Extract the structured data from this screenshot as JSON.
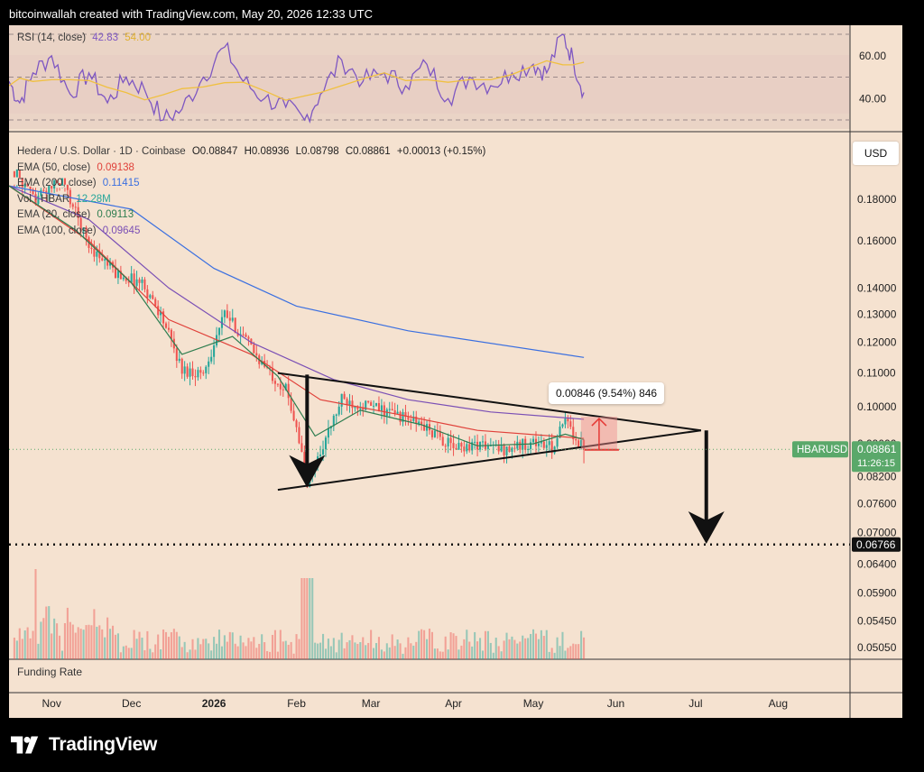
{
  "header": {
    "text": "bitcoinwallah created with TradingView.com, May 20, 2026 12:33 UTC"
  },
  "branding": {
    "logo_text": "TradingView"
  },
  "rsi_panel": {
    "label": "RSI (14, close)",
    "value": "42.83",
    "ma_value": "54.00",
    "tick_labels": [
      "60.00",
      "40.00"
    ]
  },
  "price_panel": {
    "title": "Hedera / U.S. Dollar · 1D · Coinbase",
    "ohlc": {
      "o": "O0.08847",
      "h": "H0.08936",
      "l": "L0.08798",
      "c": "C0.08861",
      "chg": "+0.00013 (+0.15%)"
    },
    "indicators": [
      {
        "label": "EMA (50, close)",
        "value": "0.09138",
        "color": "#e0413a"
      },
      {
        "label": "EMA (200, close)",
        "value": "0.11415",
        "color": "#3a6fe0"
      },
      {
        "label": "Vol · HBAR",
        "value": "12.28M",
        "color": "#26a69a"
      },
      {
        "label": "EMA (20, close)",
        "value": "0.09113",
        "color": "#2e7d4f"
      },
      {
        "label": "EMA (100, close)",
        "value": "0.09645",
        "color": "#7a4fb5"
      }
    ],
    "currency": "USD",
    "symbol_tag": "HBARUSD",
    "last_price": "0.08861",
    "countdown": "11:26:15",
    "target_label": "0.06766",
    "callout": "0.00846 (9.54%) 846"
  },
  "funding_panel": {
    "label": "Funding Rate"
  },
  "colors": {
    "up": "#26a69a",
    "down": "#ef5350",
    "ema20": "#2e7d4f",
    "ema50": "#e0413a",
    "ema100": "#7a4fb5",
    "ema200": "#3a6fe0",
    "rsi": "#7e57c2",
    "rsi_ma": "#f0c040",
    "background": "#f5e2d0",
    "tag": "#5aa86a"
  },
  "chart_data": {
    "type": "candlestick",
    "scale": "log",
    "y_tick_labels": [
      "0.18000",
      "0.16000",
      "0.14000",
      "0.13000",
      "0.12000",
      "0.11000",
      "0.10000",
      "0.09000",
      "0.08200",
      "0.07600",
      "0.07000",
      "0.06400",
      "0.05900",
      "0.05450",
      "0.05050"
    ],
    "x_tick_labels": [
      "Nov",
      "Dec",
      "2026",
      "Feb",
      "Mar",
      "Apr",
      "May",
      "Jun",
      "Jul",
      "Aug"
    ],
    "x_range": [
      "2025-10-16",
      "2026-08-28"
    ],
    "y_range": [
      0.0495,
      0.188
    ],
    "price_key_points": [
      [
        "2025-10-18",
        0.195
      ],
      [
        "2025-10-25",
        0.18
      ],
      [
        "2025-11-05",
        0.19
      ],
      [
        "2025-11-15",
        0.158
      ],
      [
        "2025-11-25",
        0.146
      ],
      [
        "2025-12-05",
        0.142
      ],
      [
        "2025-12-12",
        0.13
      ],
      [
        "2025-12-20",
        0.111
      ],
      [
        "2025-12-28",
        0.11
      ],
      [
        "2026-01-05",
        0.13
      ],
      [
        "2026-01-12",
        0.122
      ],
      [
        "2026-01-20",
        0.112
      ],
      [
        "2026-01-28",
        0.105
      ],
      [
        "2026-02-01",
        0.095
      ],
      [
        "2026-02-05",
        0.08
      ],
      [
        "2026-02-10",
        0.088
      ],
      [
        "2026-02-18",
        0.102
      ],
      [
        "2026-03-01",
        0.1
      ],
      [
        "2026-03-10",
        0.098
      ],
      [
        "2026-03-20",
        0.095
      ],
      [
        "2026-04-01",
        0.089
      ],
      [
        "2026-04-10",
        0.09
      ],
      [
        "2026-04-20",
        0.0885
      ],
      [
        "2026-05-01",
        0.0905
      ],
      [
        "2026-05-08",
        0.089
      ],
      [
        "2026-05-13",
        0.096
      ],
      [
        "2026-05-20",
        0.0886
      ]
    ],
    "ema_series": [
      {
        "name": "EMA (200, close)",
        "points": [
          [
            "2025-10-16",
            0.202
          ],
          [
            "2025-12-01",
            0.175
          ],
          [
            "2026-01-01",
            0.148
          ],
          [
            "2026-02-01",
            0.133
          ],
          [
            "2026-03-15",
            0.124
          ],
          [
            "2026-05-20",
            0.115
          ]
        ]
      },
      {
        "name": "EMA (100, close)",
        "points": [
          [
            "2025-10-16",
            0.2
          ],
          [
            "2025-11-15",
            0.17
          ],
          [
            "2025-12-15",
            0.14
          ],
          [
            "2026-01-15",
            0.12
          ],
          [
            "2026-02-15",
            0.108
          ],
          [
            "2026-03-15",
            0.102
          ],
          [
            "2026-04-15",
            0.0985
          ],
          [
            "2026-05-20",
            0.0965
          ]
        ]
      },
      {
        "name": "EMA (50, close)",
        "points": [
          [
            "2025-10-16",
            0.195
          ],
          [
            "2025-11-15",
            0.16
          ],
          [
            "2025-12-15",
            0.128
          ],
          [
            "2026-01-15",
            0.116
          ],
          [
            "2026-02-10",
            0.102
          ],
          [
            "2026-03-10",
            0.098
          ],
          [
            "2026-04-10",
            0.0935
          ],
          [
            "2026-05-20",
            0.0914
          ]
        ]
      },
      {
        "name": "EMA (20, close)",
        "points": [
          [
            "2025-10-16",
            0.19
          ],
          [
            "2025-11-10",
            0.165
          ],
          [
            "2025-12-01",
            0.142
          ],
          [
            "2025-12-20",
            0.116
          ],
          [
            "2026-01-08",
            0.122
          ],
          [
            "2026-01-25",
            0.109
          ],
          [
            "2026-02-08",
            0.092
          ],
          [
            "2026-02-25",
            0.099
          ],
          [
            "2026-03-20",
            0.095
          ],
          [
            "2026-04-10",
            0.0895
          ],
          [
            "2026-05-01",
            0.09
          ],
          [
            "2026-05-13",
            0.0925
          ],
          [
            "2026-05-20",
            0.0911
          ]
        ]
      }
    ],
    "rsi_series": [
      [
        "2025-10-16",
        48
      ],
      [
        "2025-10-20",
        38
      ],
      [
        "2025-10-25",
        52
      ],
      [
        "2025-11-01",
        60
      ],
      [
        "2025-11-08",
        42
      ],
      [
        "2025-11-15",
        52
      ],
      [
        "2025-11-22",
        38
      ],
      [
        "2025-11-29",
        50
      ],
      [
        "2025-12-06",
        44
      ],
      [
        "2025-12-13",
        30
      ],
      [
        "2025-12-20",
        35
      ],
      [
        "2025-12-28",
        50
      ],
      [
        "2026-01-05",
        64
      ],
      [
        "2026-01-12",
        48
      ],
      [
        "2026-01-20",
        40
      ],
      [
        "2026-01-28",
        36
      ],
      [
        "2026-02-04",
        30
      ],
      [
        "2026-02-10",
        42
      ],
      [
        "2026-02-18",
        58
      ],
      [
        "2026-02-26",
        48
      ],
      [
        "2026-03-06",
        52
      ],
      [
        "2026-03-14",
        46
      ],
      [
        "2026-03-22",
        56
      ],
      [
        "2026-03-30",
        40
      ],
      [
        "2026-04-07",
        50
      ],
      [
        "2026-04-15",
        46
      ],
      [
        "2026-04-23",
        52
      ],
      [
        "2026-05-01",
        56
      ],
      [
        "2026-05-06",
        52
      ],
      [
        "2026-05-12",
        70
      ],
      [
        "2026-05-16",
        58
      ],
      [
        "2026-05-20",
        42.83
      ]
    ],
    "trendlines": [
      {
        "name": "upper-trendline",
        "from": [
          "2026-01-25",
          0.11
        ],
        "to": [
          "2026-07-03",
          0.0935
        ]
      },
      {
        "name": "lower-trendline",
        "from": [
          "2026-01-25",
          0.079
        ],
        "to": [
          "2026-07-03",
          0.0935
        ]
      }
    ],
    "target_price": 0.06766,
    "last_price": 0.08861
  }
}
